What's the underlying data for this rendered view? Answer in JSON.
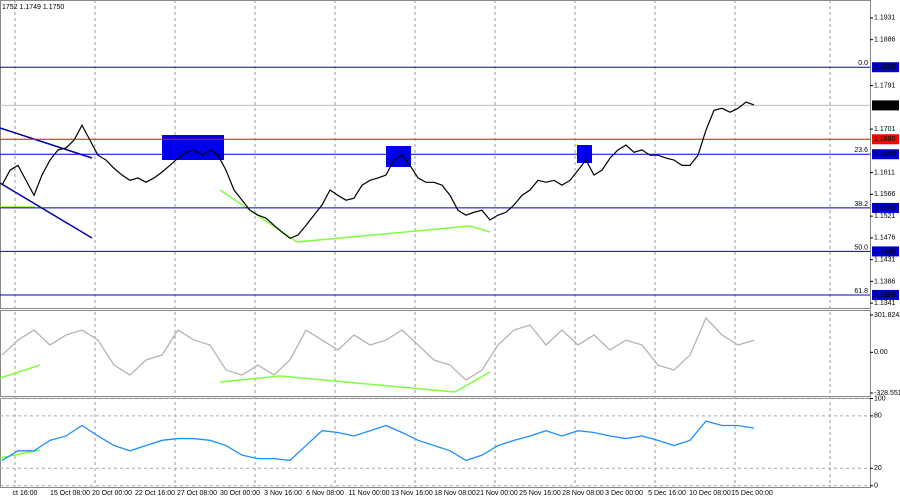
{
  "header": "1752 1.1749 1.1750",
  "time_labels": [
    "ct 16:00",
    "15 Oct 08:00",
    "20 Oct 00:00",
    "22 Oct 16:00",
    "27 Oct 08:00",
    "30 Oct 00:00",
    "3 Nov 16:00",
    "6 Nov 08:00",
    "11 Nov 00:00",
    "13 Nov 16:00",
    "18 Nov 08:00",
    "21 Nov 00:00",
    "25 Nov 16:00",
    "28 Nov 08:00",
    "3 Dec 00:00",
    "5 Dec 16:00",
    "10 Dec 08:00",
    "15 Dec 00:00"
  ],
  "chart_data": [
    {
      "type": "line",
      "color": "#000000",
      "values": [
        1.1585,
        1.1616,
        1.1626,
        1.1595,
        1.1564,
        1.1606,
        1.1637,
        1.1658,
        1.1662,
        1.1678,
        1.1709,
        1.1678,
        1.1647,
        1.1637,
        1.162,
        1.1606,
        1.1595,
        1.16,
        1.1591,
        1.16,
        1.1612,
        1.1626,
        1.1641,
        1.1653,
        1.1658,
        1.1647,
        1.1658,
        1.1647,
        1.1616,
        1.1575,
        1.1554,
        1.1533,
        1.1523,
        1.1517,
        1.1502,
        1.1488,
        1.1475,
        1.1482,
        1.1502,
        1.1523,
        1.1544,
        1.1575,
        1.1564,
        1.1554,
        1.1558,
        1.1585,
        1.1595,
        1.16,
        1.1606,
        1.1637,
        1.1647,
        1.1626,
        1.16,
        1.1591,
        1.1591,
        1.1585,
        1.1564,
        1.1533,
        1.1523,
        1.1529,
        1.1533,
        1.1513,
        1.1523,
        1.1529,
        1.1544,
        1.1564,
        1.1575,
        1.1595,
        1.1591,
        1.1595,
        1.1585,
        1.1595,
        1.1616,
        1.1637,
        1.1606,
        1.1616,
        1.1641,
        1.1658,
        1.1668,
        1.1653,
        1.1658,
        1.1647,
        1.1647,
        1.1641,
        1.1637,
        1.1626,
        1.1626,
        1.1647,
        1.1699,
        1.174,
        1.1744,
        1.1736,
        1.1744,
        1.1757,
        1.1751
      ],
      "ylim": [
        1.1331,
        1.1968
      ],
      "yticks": [
        1.1931,
        1.1886,
        1.1791,
        1.1701,
        1.1611,
        1.1566,
        1.1521,
        1.1476,
        1.1431,
        1.1386,
        1.1341
      ],
      "levels": [
        {
          "label": "0.0",
          "value": 1.1829,
          "color": "#0000cc"
        },
        {
          "label": "23.6",
          "value": 1.1649,
          "color": "#0000cc"
        },
        {
          "label": "38.2",
          "value": 1.1538,
          "color": "#0000cc"
        },
        {
          "label": "50.0",
          "value": 1.1448,
          "color": "#0000cc"
        },
        {
          "label": "61.8",
          "value": 1.1358,
          "color": "#0000cc"
        }
      ],
      "marked_prices": [
        {
          "value": 1.175,
          "label": "1.1750",
          "color": "#000000"
        },
        {
          "value": 1.168,
          "label": "1.1680",
          "color": "#ff0000"
        }
      ]
    },
    {
      "type": "line",
      "color": "#b4b4b4",
      "values": [
        -22,
        99,
        180,
        59,
        140,
        180,
        99,
        -103,
        -184,
        -62,
        -22,
        180,
        99,
        59,
        -143,
        -184,
        -103,
        -184,
        -62,
        180,
        99,
        19,
        140,
        59,
        99,
        180,
        59,
        -62,
        -103,
        -224,
        -143,
        59,
        180,
        221,
        59,
        180,
        59,
        140,
        19,
        99,
        59,
        -103,
        -143,
        -22,
        277,
        140,
        59,
        99
      ],
      "ylim": [
        -353,
        342
      ],
      "yticks": [
        301.8242,
        {
          "value": 0,
          "label": "0.00"
        },
        -328.551
      ]
    },
    {
      "type": "line",
      "color": "#1f8fff",
      "values": [
        29,
        40,
        40,
        52,
        57,
        69,
        57,
        46,
        40,
        46,
        52,
        54,
        54,
        52,
        46,
        35,
        31,
        31,
        29,
        46,
        63,
        61,
        57,
        63,
        69,
        61,
        52,
        46,
        40,
        29,
        35,
        46,
        52,
        57,
        63,
        57,
        63,
        61,
        57,
        54,
        57,
        52,
        46,
        52,
        74,
        69,
        69,
        66
      ],
      "ylim": [
        -1.5,
        100.5
      ],
      "yticks": [
        100,
        80,
        20,
        0
      ]
    }
  ]
}
